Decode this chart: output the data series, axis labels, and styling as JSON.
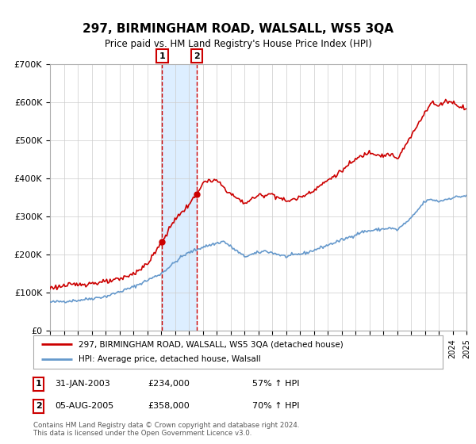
{
  "title": "297, BIRMINGHAM ROAD, WALSALL, WS5 3QA",
  "subtitle": "Price paid vs. HM Land Registry's House Price Index (HPI)",
  "sale1_yr": 2003.083,
  "sale1_price": 234000,
  "sale1_date_label": "31-JAN-2003",
  "sale1_hpi_pct": "57% ↑ HPI",
  "sale2_yr": 2005.583,
  "sale2_price": 358000,
  "sale2_date_label": "05-AUG-2005",
  "sale2_hpi_pct": "70% ↑ HPI",
  "price_line_color": "#cc0000",
  "hpi_line_color": "#6699cc",
  "shade_color": "#ddeeff",
  "vline_color": "#cc0000",
  "grid_color": "#cccccc",
  "bg_color": "#ffffff",
  "ylim": [
    0,
    700000
  ],
  "yticks": [
    0,
    100000,
    200000,
    300000,
    400000,
    500000,
    600000,
    700000
  ],
  "ytick_labels": [
    "£0",
    "£100K",
    "£200K",
    "£300K",
    "£400K",
    "£500K",
    "£600K",
    "£700K"
  ],
  "xlim_start": 1995,
  "xlim_end": 2025,
  "legend_label_price": "297, BIRMINGHAM ROAD, WALSALL, WS5 3QA (detached house)",
  "legend_label_hpi": "HPI: Average price, detached house, Walsall",
  "sale1_amount_label": "£234,000",
  "sale2_amount_label": "£358,000",
  "footer1": "Contains HM Land Registry data © Crown copyright and database right 2024.",
  "footer2": "This data is licensed under the Open Government Licence v3.0."
}
